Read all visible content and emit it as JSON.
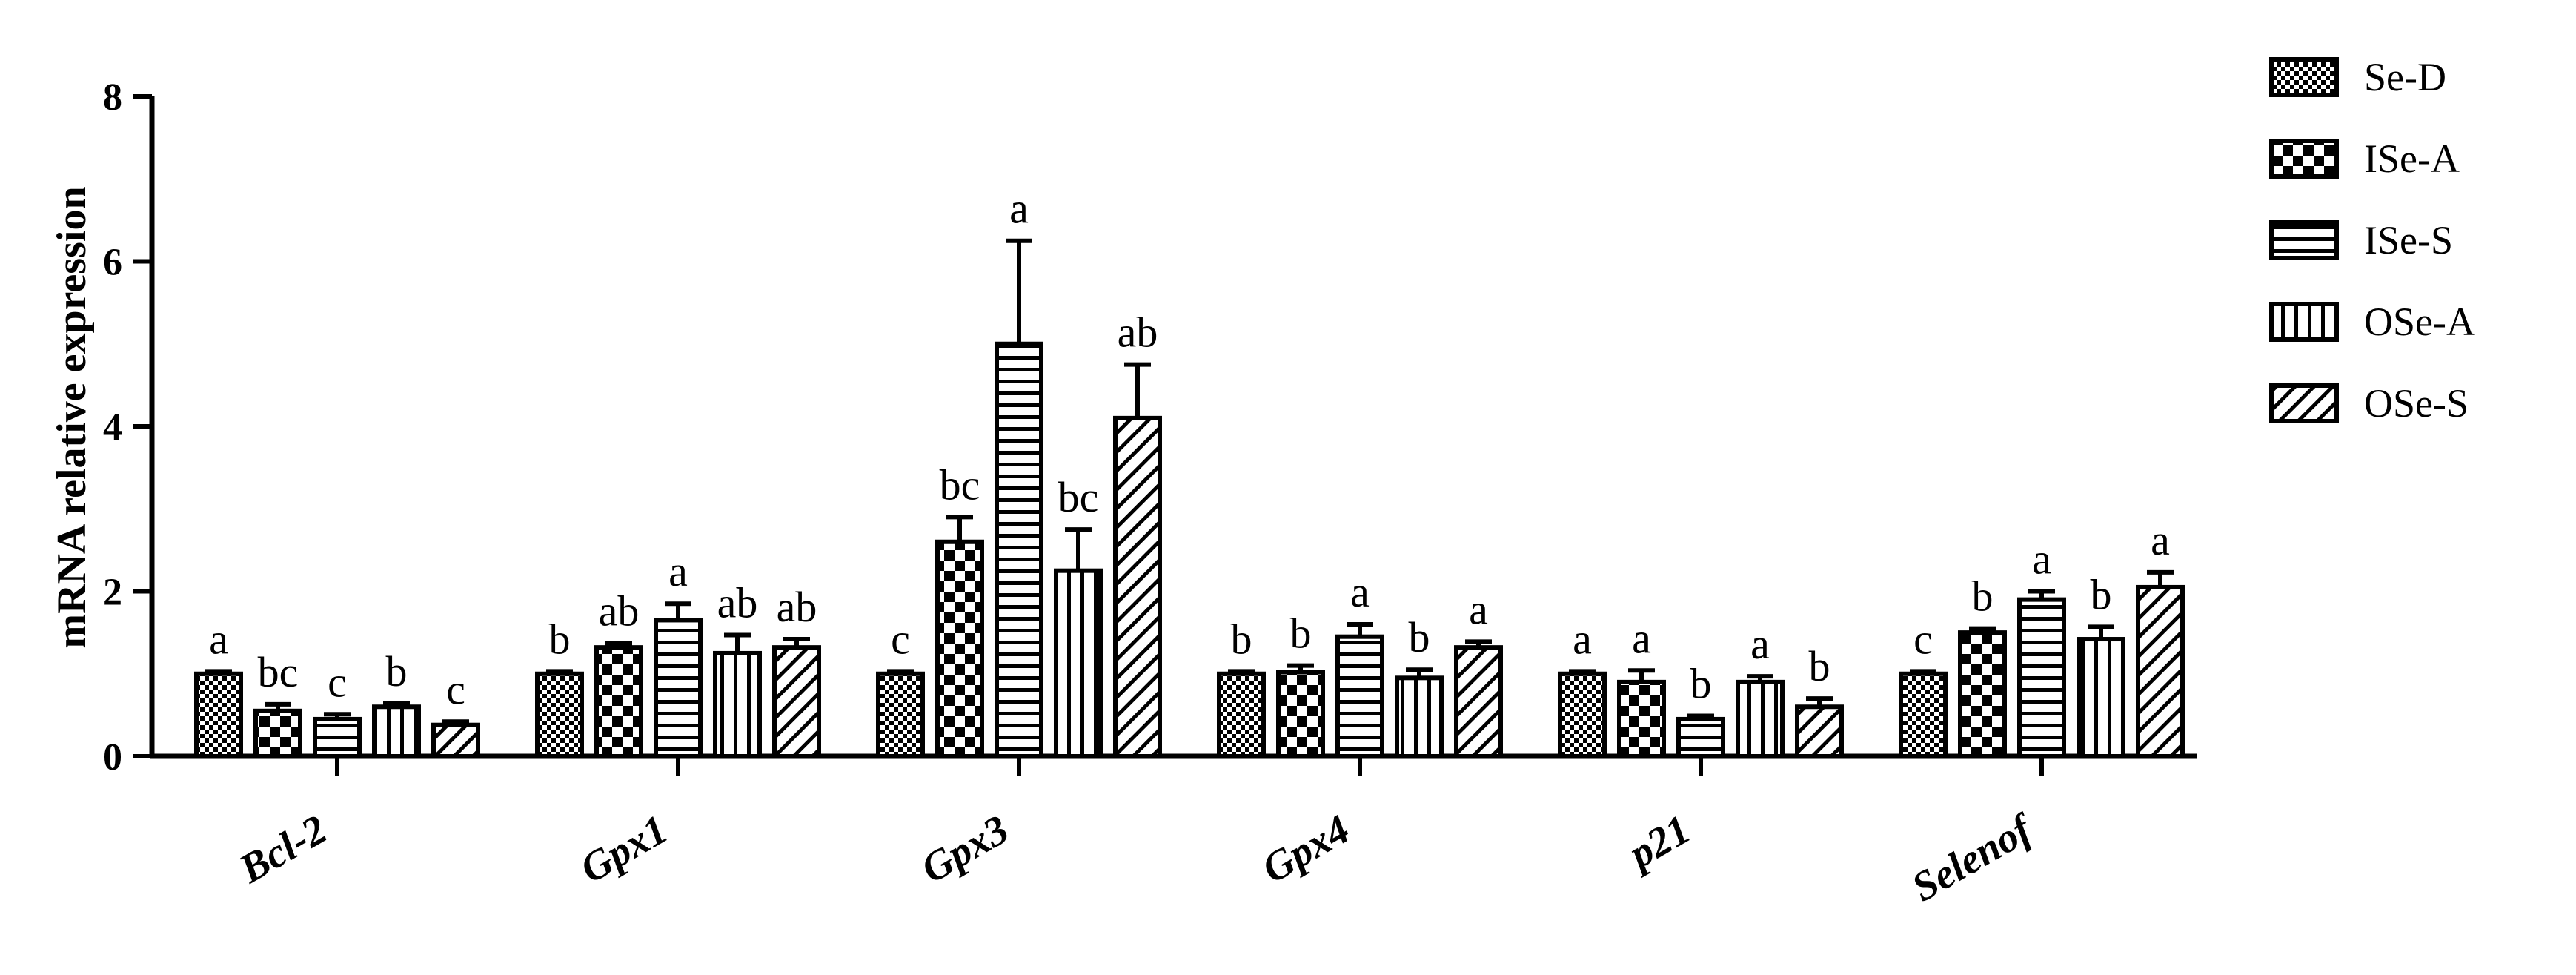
{
  "chart_data": {
    "type": "bar",
    "title": "",
    "xlabel": "",
    "ylabel": "mRNA relative expression",
    "ylim": [
      0,
      8
    ],
    "yticks": [
      0,
      2,
      4,
      6,
      8
    ],
    "grid": false,
    "legend_position": "top-right",
    "categories": [
      "Bcl-2",
      "Gpx1",
      "Gpx3",
      "Gpx4",
      "p21",
      "Selenof"
    ],
    "series": [
      {
        "name": "Se-D",
        "pattern": "fine-check",
        "values": [
          1.0,
          1.0,
          1.0,
          1.0,
          1.0,
          1.0
        ],
        "errors": [
          0.03,
          0.03,
          0.03,
          0.03,
          0.03,
          0.03
        ],
        "letters": [
          "a",
          "b",
          "c",
          "b",
          "a",
          "c"
        ]
      },
      {
        "name": "ISe-A",
        "pattern": "large-check",
        "values": [
          0.55,
          1.32,
          2.6,
          1.02,
          0.9,
          1.5
        ],
        "errors": [
          0.08,
          0.05,
          0.3,
          0.08,
          0.14,
          0.05
        ],
        "letters": [
          "bc",
          "ab",
          "bc",
          "b",
          "a",
          "b"
        ]
      },
      {
        "name": "ISe-S",
        "pattern": "horizontal",
        "values": [
          0.45,
          1.65,
          5.0,
          1.45,
          0.45,
          1.9
        ],
        "errors": [
          0.06,
          0.2,
          1.25,
          0.15,
          0.04,
          0.1
        ],
        "letters": [
          "c",
          "a",
          "a",
          "a",
          "b",
          "a"
        ]
      },
      {
        "name": "OSe-A",
        "pattern": "vertical",
        "values": [
          0.6,
          1.25,
          2.25,
          0.95,
          0.9,
          1.42
        ],
        "errors": [
          0.04,
          0.22,
          0.5,
          0.1,
          0.07,
          0.15
        ],
        "letters": [
          "b",
          "ab",
          "bc",
          "b",
          "a",
          "b"
        ]
      },
      {
        "name": "OSe-S",
        "pattern": "diagonal",
        "values": [
          0.38,
          1.32,
          4.1,
          1.32,
          0.6,
          2.05
        ],
        "errors": [
          0.04,
          0.1,
          0.65,
          0.07,
          0.1,
          0.18
        ],
        "letters": [
          "c",
          "ab",
          "ab",
          "a",
          "b",
          "a"
        ]
      }
    ]
  }
}
